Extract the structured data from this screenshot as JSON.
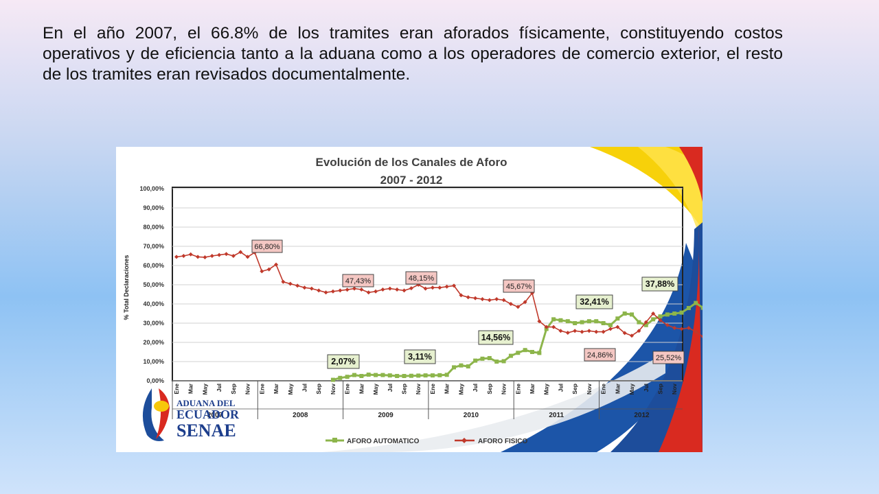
{
  "caption": "En el año 2007, el 66.8% de los tramites eran aforados físicamente, constituyendo costos operativos y de eficiencia tanto a la aduana como a los operadores de comercio exterior, el resto de los tramites eran revisados documentalmente.",
  "logo": {
    "line1": "ADUANA DEL",
    "line2": "ECUADOR",
    "line3": "SENAE"
  },
  "colors": {
    "automatico": "#8db54b",
    "fisico": "#c0392b",
    "grid": "#d0d0d0",
    "annotation_red_fill": "#f4c7c3",
    "annotation_green_fill": "#e6f0cf"
  },
  "chart_data": {
    "type": "line",
    "title": "Evolución de los Canales de Aforo",
    "subtitle": "2007 - 2012",
    "ylabel": "% Total Declaraciones",
    "ylim": [
      0,
      100
    ],
    "yticks": [
      "0,00%",
      "10,00%",
      "20,00%",
      "30,00%",
      "40,00%",
      "50,00%",
      "60,00%",
      "70,00%",
      "80,00%",
      "90,00%",
      "100,00%"
    ],
    "grid": true,
    "legend_position": "bottom",
    "month_labels": [
      "Ene",
      "Mar",
      "May",
      "Jul",
      "Sep",
      "Nov"
    ],
    "years": [
      "2007",
      "2008",
      "2009",
      "2010",
      "2011",
      "2012"
    ],
    "series": [
      {
        "name": "AFORO AUTOMATICO",
        "start_index": 22,
        "values": [
          0.5,
          1.5,
          2.07,
          3.0,
          2.5,
          3.2,
          3.0,
          3.0,
          2.8,
          2.5,
          2.5,
          2.6,
          2.7,
          2.8,
          2.8,
          2.9,
          3.11,
          7.0,
          8.0,
          7.5,
          10.5,
          11.5,
          11.8,
          10.0,
          10.2,
          13.0,
          14.56,
          16.0,
          15.0,
          14.5,
          27.0,
          32.0,
          31.5,
          31.0,
          30.0,
          30.5,
          31.0,
          31.0,
          30.0,
          29.0,
          32.41,
          35.0,
          34.5,
          30.5,
          29.0,
          32.0,
          33.5,
          34.5,
          35.0,
          35.5,
          37.88,
          40.5,
          38.0
        ]
      },
      {
        "name": "AFORO FISICO",
        "start_index": 0,
        "values": [
          64.5,
          65.0,
          65.8,
          64.5,
          64.3,
          65.0,
          65.5,
          66.0,
          65.0,
          67.0,
          64.5,
          66.8,
          57.0,
          58.0,
          60.5,
          51.5,
          50.5,
          49.5,
          48.5,
          48.0,
          47.0,
          46.0,
          46.5,
          47.0,
          47.43,
          48.0,
          47.5,
          46.0,
          46.5,
          47.5,
          48.0,
          47.5,
          47.0,
          48.15,
          50.0,
          48.0,
          48.5,
          48.5,
          49.0,
          49.5,
          44.5,
          43.5,
          43.0,
          42.5,
          42.0,
          42.5,
          42.0,
          40.0,
          38.5,
          41.0,
          45.67,
          31.0,
          28.0,
          28.0,
          26.0,
          25.0,
          26.0,
          25.5,
          26.0,
          25.5,
          25.5,
          27.0,
          28.0,
          24.86,
          23.5,
          26.0,
          30.5,
          35.0,
          31.5,
          29.0,
          27.5,
          27.0,
          27.5,
          25.52,
          23.0,
          25.0,
          25.5
        ]
      }
    ],
    "annotations": [
      {
        "text": "66,80%",
        "series": "AFORO FISICO",
        "style": "red"
      },
      {
        "text": "47,43%",
        "series": "AFORO FISICO",
        "style": "red"
      },
      {
        "text": "48,15%",
        "series": "AFORO FISICO",
        "style": "red"
      },
      {
        "text": "45,67%",
        "series": "AFORO FISICO",
        "style": "red"
      },
      {
        "text": "24,86%",
        "series": "AFORO FISICO",
        "style": "red"
      },
      {
        "text": "25,52%",
        "series": "AFORO FISICO",
        "style": "red"
      },
      {
        "text": "2,07%",
        "series": "AFORO AUTOMATICO",
        "style": "green"
      },
      {
        "text": "3,11%",
        "series": "AFORO AUTOMATICO",
        "style": "green"
      },
      {
        "text": "14,56%",
        "series": "AFORO AUTOMATICO",
        "style": "green"
      },
      {
        "text": "32,41%",
        "series": "AFORO AUTOMATICO",
        "style": "green"
      },
      {
        "text": "37,88%",
        "series": "AFORO AUTOMATICO",
        "style": "green"
      }
    ]
  }
}
